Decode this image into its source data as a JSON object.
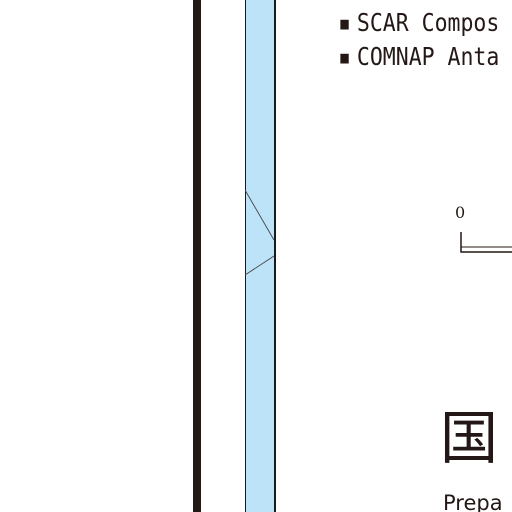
{
  "sources": {
    "bullet": "▪",
    "items": [
      "SCAR Compos",
      "COMNAP Anta"
    ]
  },
  "scale": {
    "zero_label": "0"
  },
  "title": {
    "kanji": "国"
  },
  "footer": {
    "prepared_text": "Prepa"
  },
  "colors": {
    "frame": "#231815",
    "sea": "#bde3f8",
    "ink": "#231815"
  }
}
